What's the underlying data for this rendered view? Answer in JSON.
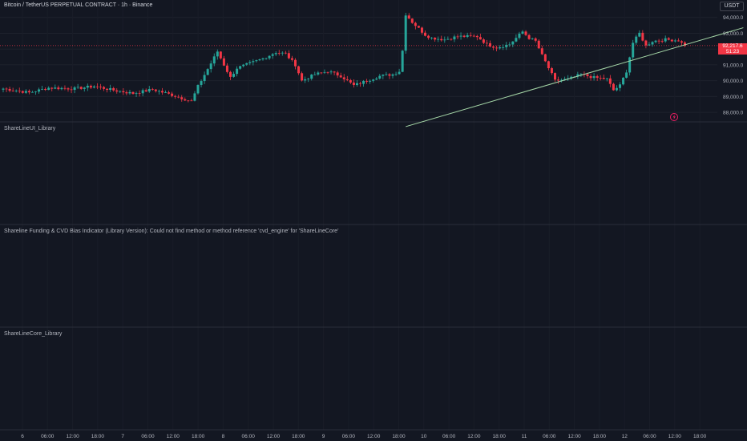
{
  "header": {
    "title": "Bitcoin / TetherUS PERPETUAL CONTRACT · 1h · Binance",
    "currency": "USDT"
  },
  "price_tag": {
    "price": "92,217.6",
    "countdown": "51:23"
  },
  "panes": [
    {
      "label": "ShareLineUI_Library"
    },
    {
      "label": "Shareline Funding & CVD Bias Indicator (Library Version): Could not find method or method reference 'cvd_engine' for 'ShareLineCore'"
    },
    {
      "label": "ShareLineCore_Library"
    }
  ],
  "colors": {
    "up": "#26a69a",
    "down": "#f23645",
    "trendline": "#a5d6a7",
    "background": "#131722",
    "grid": "#1e222d",
    "alert_icon": "#e91e63"
  },
  "chart_data": {
    "type": "candlestick",
    "ylim": [
      87400,
      95100
    ],
    "y_ticks": [
      88000,
      89000,
      90000,
      91000,
      92000,
      93000,
      94000
    ],
    "y_tick_labels": [
      "88,000.0",
      "89,000.0",
      "90,000.0",
      "91,000.0",
      "92,000.0",
      "93,000.0",
      "94,000.0"
    ],
    "x_tick_labels": [
      "6",
      "06:00",
      "12:00",
      "18:00",
      "7",
      "06:00",
      "12:00",
      "18:00",
      "8",
      "06:00",
      "12:00",
      "18:00",
      "9",
      "06:00",
      "12:00",
      "18:00",
      "10",
      "06:00",
      "12:00",
      "18:00",
      "11",
      "06:00",
      "12:00",
      "18:00",
      "12",
      "06:00",
      "12:00",
      "18:00"
    ],
    "current_price": 92217.6,
    "trendline": {
      "start": {
        "candle": 124,
        "price": 87100
      },
      "end": {
        "candle": 228,
        "price": 93350
      }
    },
    "price_path": [
      [
        0,
        89500
      ],
      [
        8,
        89250
      ],
      [
        14,
        89550
      ],
      [
        22,
        89500
      ],
      [
        28,
        89650
      ],
      [
        34,
        89400
      ],
      [
        40,
        89200
      ],
      [
        46,
        89450
      ],
      [
        52,
        89100
      ],
      [
        58,
        88700
      ],
      [
        60,
        89650
      ],
      [
        64,
        91100
      ],
      [
        66,
        91850
      ],
      [
        68,
        91000
      ],
      [
        70,
        90200
      ],
      [
        72,
        90800
      ],
      [
        80,
        91400
      ],
      [
        84,
        91800
      ],
      [
        87,
        91700
      ],
      [
        90,
        91000
      ],
      [
        92,
        90000
      ],
      [
        96,
        90400
      ],
      [
        100,
        90600
      ],
      [
        104,
        90300
      ],
      [
        108,
        89700
      ],
      [
        112,
        90000
      ],
      [
        116,
        90300
      ],
      [
        120,
        90400
      ],
      [
        122,
        90600
      ],
      [
        123,
        91900
      ],
      [
        124,
        94200
      ],
      [
        126,
        93700
      ],
      [
        130,
        92900
      ],
      [
        132,
        92700
      ],
      [
        136,
        92600
      ],
      [
        140,
        92800
      ],
      [
        146,
        92800
      ],
      [
        149,
        92300
      ],
      [
        152,
        92100
      ],
      [
        156,
        92300
      ],
      [
        158,
        92700
      ],
      [
        160,
        93100
      ],
      [
        162,
        92700
      ],
      [
        164,
        92500
      ],
      [
        166,
        91600
      ],
      [
        168,
        90800
      ],
      [
        170,
        90000
      ],
      [
        174,
        90100
      ],
      [
        178,
        90400
      ],
      [
        182,
        90200
      ],
      [
        186,
        90100
      ],
      [
        188,
        89400
      ],
      [
        190,
        89700
      ],
      [
        192,
        90600
      ],
      [
        194,
        92400
      ],
      [
        196,
        93000
      ],
      [
        198,
        92200
      ],
      [
        200,
        92500
      ],
      [
        204,
        92600
      ],
      [
        208,
        92550
      ],
      [
        210,
        92217.6
      ]
    ],
    "candles_count": 211
  }
}
